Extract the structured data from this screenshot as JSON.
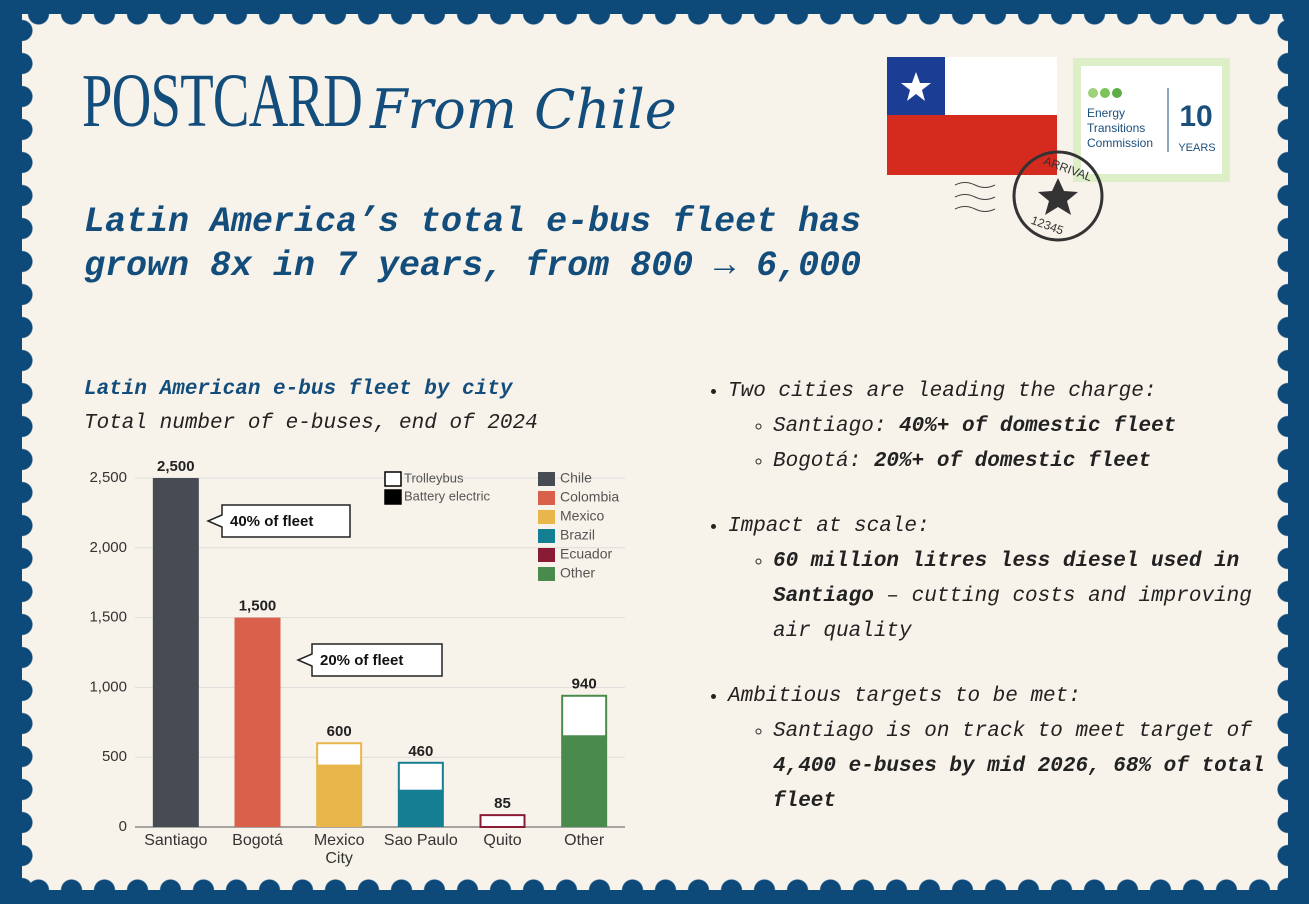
{
  "header": {
    "title": "POSTCARD",
    "script": "From Chile"
  },
  "headline": "Latin America’s total e-bus fleet has grown 8x in 7 years, from 800 → 6,000",
  "logo": {
    "name": "Energy Transitions Commission",
    "number": "10",
    "years": "YEARS"
  },
  "stamp": {
    "top": "ARRIVAL",
    "bottom": "12345"
  },
  "chart_data": {
    "type": "bar",
    "title": "Latin American e-bus fleet by city",
    "subtitle": "Total number of e-buses, end of 2024",
    "categories": [
      "Santiago",
      "Bogotá",
      "Mexico City",
      "Sao Paulo",
      "Quito",
      "Other"
    ],
    "series": [
      {
        "name": "Trolleybus",
        "values": [
          0,
          0,
          160,
          200,
          85,
          290
        ]
      },
      {
        "name": "Battery electric",
        "values": [
          2500,
          1500,
          440,
          260,
          0,
          650
        ]
      }
    ],
    "totals": [
      2500,
      1500,
      600,
      460,
      85,
      940
    ],
    "total_labels": [
      "2,500",
      "1,500",
      "600",
      "460",
      "85",
      "940"
    ],
    "regions": [
      {
        "name": "Chile",
        "color": "#474b53"
      },
      {
        "name": "Colombia",
        "color": "#d9614b"
      },
      {
        "name": "Mexico",
        "color": "#e8b64a"
      },
      {
        "name": "Brazil",
        "color": "#167e93"
      },
      {
        "name": "Ecuador",
        "color": "#8a1b35"
      },
      {
        "name": "Other",
        "color": "#4b8a4d"
      }
    ],
    "annotations": [
      "40% of fleet",
      "20% of fleet"
    ],
    "ylim": [
      0,
      2500
    ],
    "yticks": [
      0,
      500,
      {
        "value": 1000,
        "label": "1,000"
      },
      {
        "value": 1500,
        "label": "1,500"
      },
      {
        "value": 2000,
        "label": "2,000"
      },
      {
        "value": 2500,
        "label": "2,500"
      }
    ],
    "grid": true
  },
  "bullets": [
    {
      "text": "Two cities are leading the charge:",
      "sub": [
        [
          {
            "text": "Santiago: ",
            "bold": false
          },
          {
            "text": "40%+ of domestic fleet",
            "bold": true
          }
        ],
        [
          {
            "text": "Bogotá: ",
            "bold": false
          },
          {
            "text": "20%+ of domestic fleet",
            "bold": true
          }
        ]
      ]
    },
    {
      "text": "Impact at scale:",
      "sub": [
        [
          {
            "text": "60 million litres less diesel used in Santiago",
            "bold": true
          },
          {
            "text": " – cutting costs and improving air quality",
            "bold": false
          }
        ]
      ]
    },
    {
      "text": "Ambitious targets to be met:",
      "sub": [
        [
          {
            "text": "Santiago is on track to meet target of ",
            "bold": false
          },
          {
            "text": "4,400 e-buses by mid 2026, 68% of total fleet",
            "bold": true
          }
        ]
      ]
    }
  ]
}
